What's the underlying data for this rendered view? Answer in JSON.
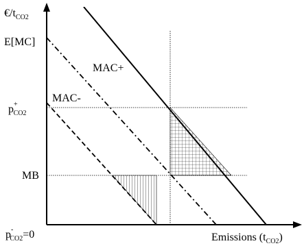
{
  "labels": {
    "y_axis": {
      "base": "€/t",
      "sub": "CO2"
    },
    "x_axis": {
      "base": "Emissions (t",
      "sub": "CO2",
      "tail": ")"
    },
    "emc": "E[MC]",
    "mac_plus": "MAC+",
    "mac_minus": "MAC-",
    "p_plus": {
      "base": "p",
      "sup": "+",
      "sub": "CO2"
    },
    "p_minus": {
      "base": "p",
      "sup": "-",
      "sub": "CO2",
      "tail": "=0"
    },
    "mb": "MB"
  }
}
